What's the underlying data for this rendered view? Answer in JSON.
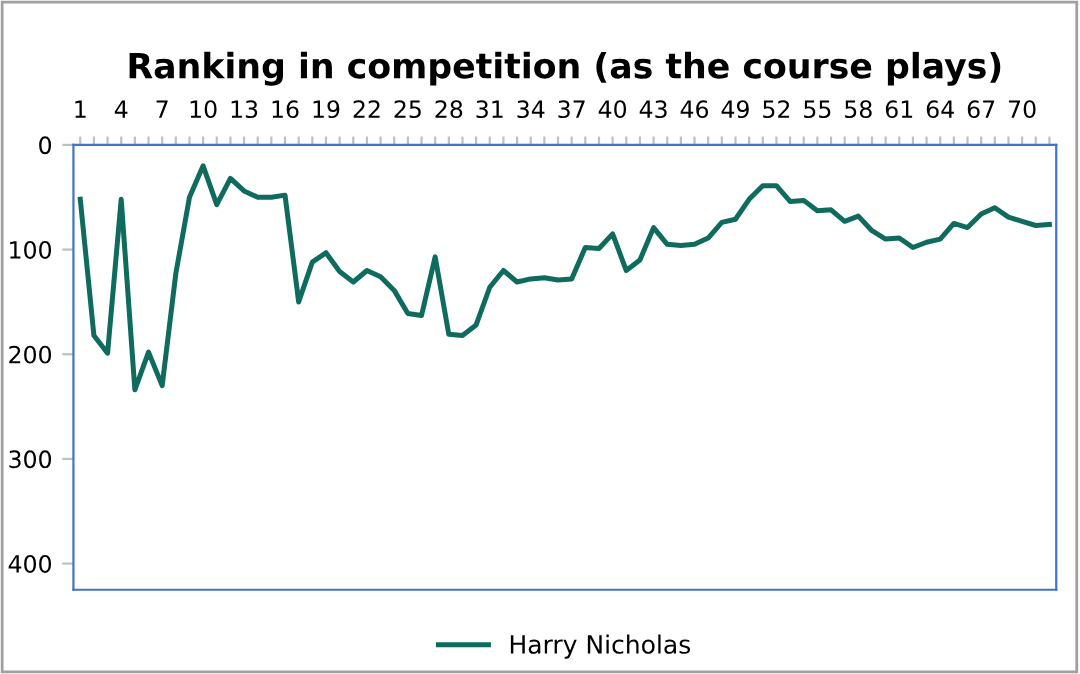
{
  "chart_data": {
    "type": "line",
    "title": "Ranking in competition (as the course plays)",
    "x": [
      1,
      2,
      3,
      4,
      5,
      6,
      7,
      8,
      9,
      10,
      11,
      12,
      13,
      14,
      15,
      16,
      17,
      18,
      19,
      20,
      21,
      22,
      23,
      24,
      25,
      26,
      27,
      28,
      29,
      30,
      31,
      32,
      33,
      34,
      35,
      36,
      37,
      38,
      39,
      40,
      41,
      42,
      43,
      44,
      45,
      46,
      47,
      48,
      49,
      50,
      51,
      52,
      53,
      54,
      55,
      56,
      57,
      58,
      59,
      60,
      61,
      62,
      63,
      64,
      65,
      66,
      67,
      68,
      69,
      70,
      71,
      72
    ],
    "series": [
      {
        "name": "Harry Nicholas",
        "color": "#0e6b5e",
        "values": [
          52,
          182,
          199,
          52,
          234,
          198,
          230,
          123,
          50,
          20,
          57,
          32,
          44,
          50,
          50,
          48,
          150,
          112,
          103,
          121,
          131,
          120,
          126,
          139,
          161,
          163,
          107,
          181,
          182,
          172,
          136,
          120,
          131,
          128,
          127,
          129,
          128,
          98,
          99,
          85,
          120,
          110,
          79,
          95,
          96,
          95,
          89,
          74,
          71,
          52,
          39,
          39,
          54,
          53,
          63,
          62,
          73,
          68,
          82,
          90,
          89,
          98,
          93,
          90,
          75,
          79,
          66,
          60,
          69,
          73,
          77,
          76
        ]
      }
    ],
    "xlim": [
      0.5,
      72.5
    ],
    "xticks": [
      1,
      {
        "value": 2,
        "label": null
      },
      {
        "value": 3,
        "label": null
      },
      4,
      {
        "value": 5,
        "label": null
      },
      {
        "value": 6,
        "label": null
      },
      7,
      {
        "value": 8,
        "label": null
      },
      {
        "value": 9,
        "label": null
      },
      10,
      {
        "value": 11,
        "label": null
      },
      {
        "value": 12,
        "label": null
      },
      13,
      {
        "value": 14,
        "label": null
      },
      {
        "value": 15,
        "label": null
      },
      16,
      {
        "value": 17,
        "label": null
      },
      {
        "value": 18,
        "label": null
      },
      19,
      {
        "value": 20,
        "label": null
      },
      {
        "value": 21,
        "label": null
      },
      22,
      {
        "value": 23,
        "label": null
      },
      {
        "value": 24,
        "label": null
      },
      25,
      {
        "value": 26,
        "label": null
      },
      {
        "value": 27,
        "label": null
      },
      28,
      {
        "value": 29,
        "label": null
      },
      {
        "value": 30,
        "label": null
      },
      31,
      {
        "value": 32,
        "label": null
      },
      {
        "value": 33,
        "label": null
      },
      34,
      {
        "value": 35,
        "label": null
      },
      {
        "value": 36,
        "label": null
      },
      37,
      {
        "value": 38,
        "label": null
      },
      {
        "value": 39,
        "label": null
      },
      40,
      {
        "value": 41,
        "label": null
      },
      {
        "value": 42,
        "label": null
      },
      43,
      {
        "value": 44,
        "label": null
      },
      {
        "value": 45,
        "label": null
      },
      46,
      {
        "value": 47,
        "label": null
      },
      {
        "value": 48,
        "label": null
      },
      49,
      {
        "value": 50,
        "label": null
      },
      {
        "value": 51,
        "label": null
      },
      52,
      {
        "value": 53,
        "label": null
      },
      {
        "value": 54,
        "label": null
      },
      55,
      {
        "value": 56,
        "label": null
      },
      {
        "value": 57,
        "label": null
      },
      58,
      {
        "value": 59,
        "label": null
      },
      {
        "value": 60,
        "label": null
      },
      61,
      {
        "value": 62,
        "label": null
      },
      {
        "value": 63,
        "label": null
      },
      64,
      {
        "value": 65,
        "label": null
      },
      {
        "value": 66,
        "label": null
      },
      67,
      {
        "value": 68,
        "label": null
      },
      {
        "value": 69,
        "label": null
      },
      70,
      {
        "value": 71,
        "label": null
      },
      {
        "value": 72,
        "label": null
      }
    ],
    "ylim": [
      425,
      0
    ],
    "yticks": [
      0,
      100,
      200,
      300,
      400
    ],
    "grid": false,
    "legend": "bottom",
    "marker": "none",
    "line_style": "solid"
  }
}
